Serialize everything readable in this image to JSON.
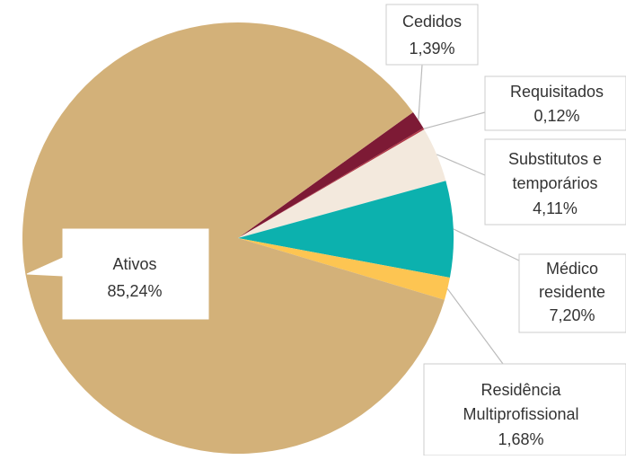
{
  "chart_data": {
    "type": "pie",
    "categories": [
      "Cedidos",
      "Requisitados",
      "Substitutos e temporários",
      "Médico residente",
      "Residência Multiprofissional",
      "Ativos"
    ],
    "values": [
      1.39,
      0.12,
      4.11,
      7.2,
      1.68,
      85.24
    ],
    "value_labels": [
      "1,39%",
      "0,12%",
      "4,11%",
      "7,20%",
      "1,68%",
      "85,24%"
    ],
    "colors": [
      "#7d1a35",
      "#b03a48",
      "#f3e9dd",
      "#0cb1ae",
      "#fdc552",
      "#d3b179"
    ]
  }
}
